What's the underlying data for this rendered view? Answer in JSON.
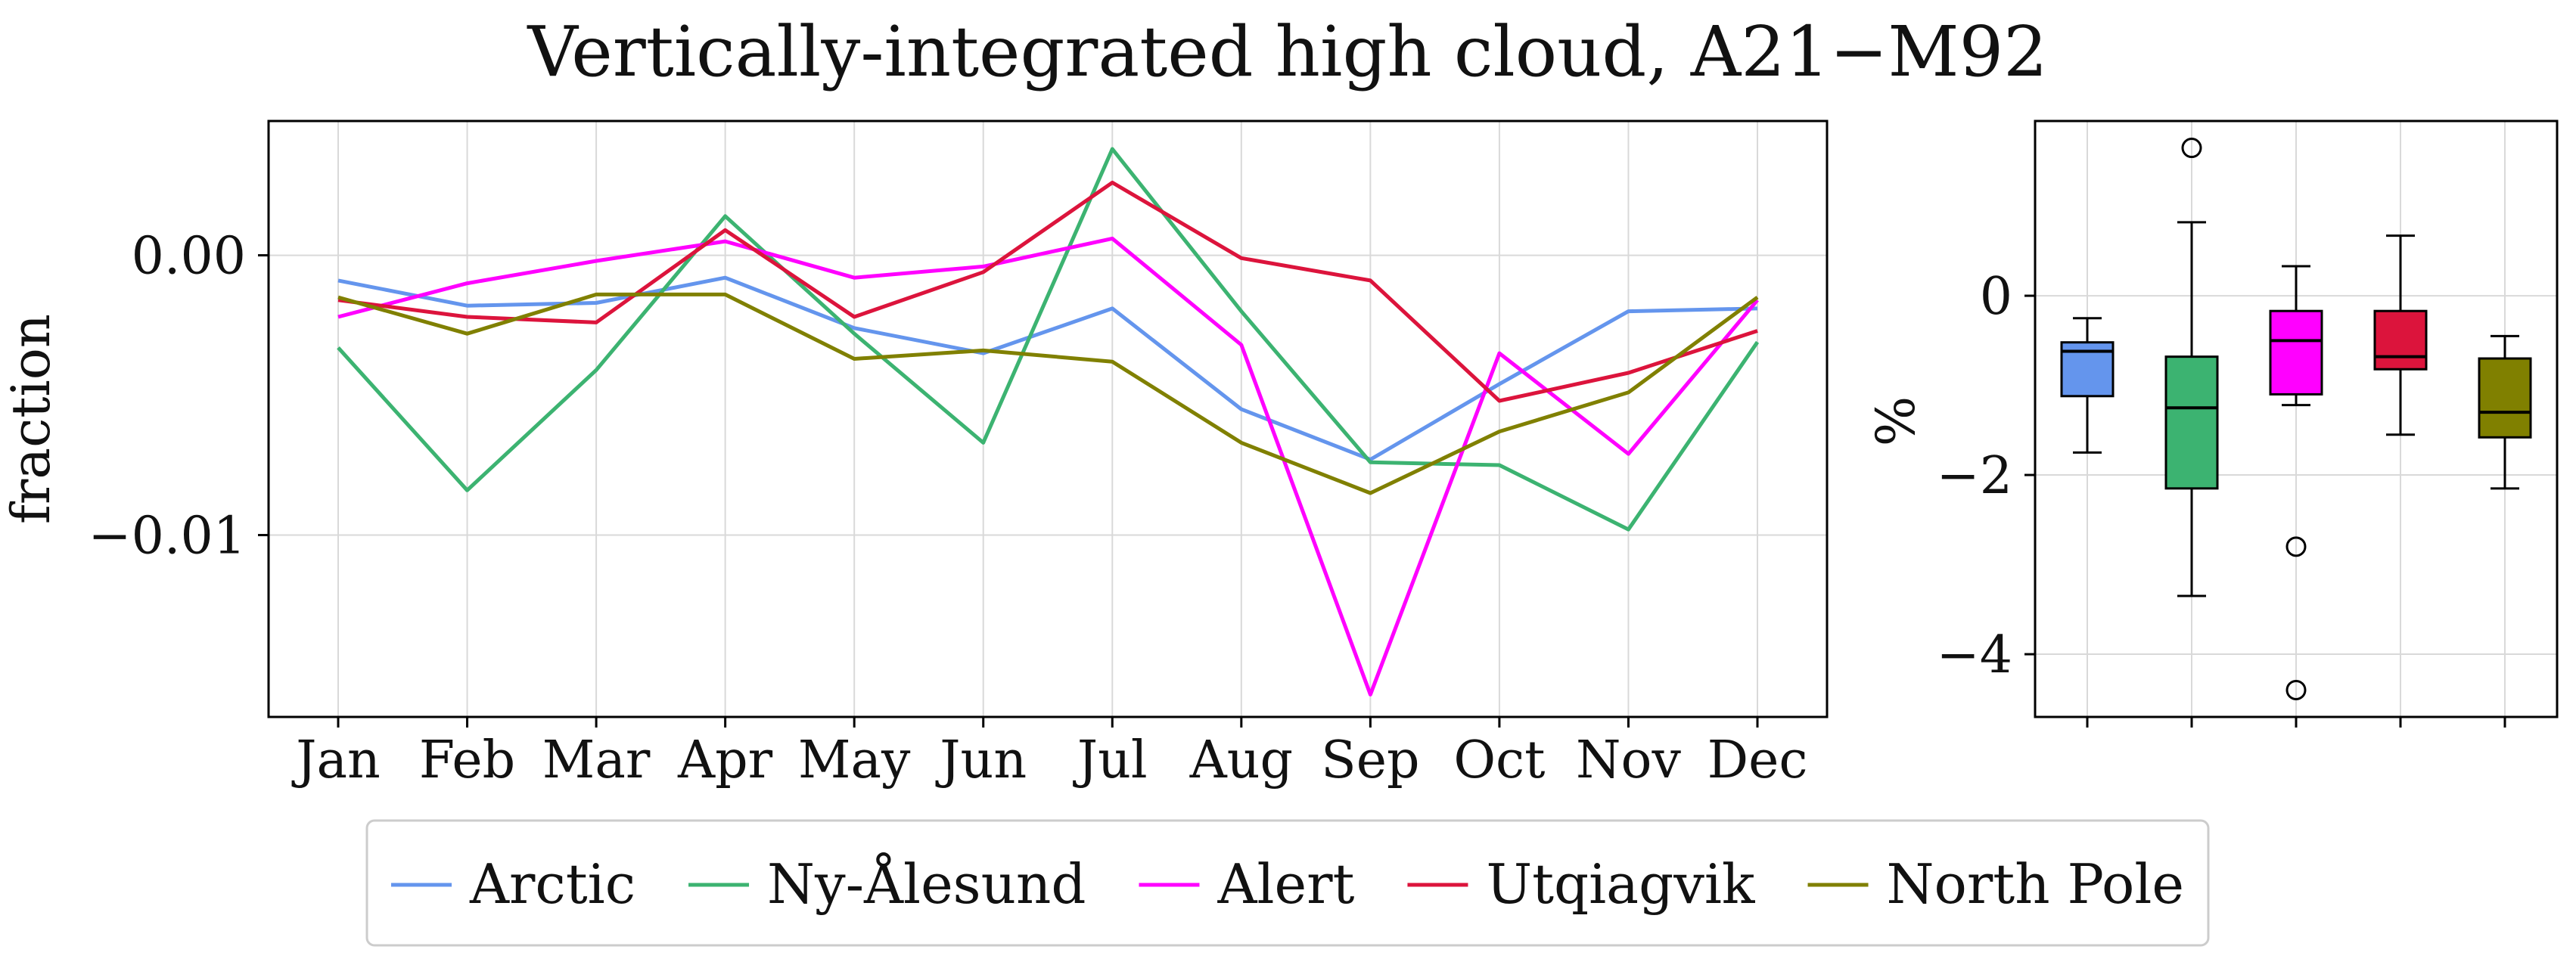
{
  "chart_data": [
    {
      "type": "line",
      "title": "Vertically-integrated high cloud, A21−M92",
      "ylabel": "fraction",
      "xlabel": "",
      "categories": [
        "Jan",
        "Feb",
        "Mar",
        "Apr",
        "May",
        "Jun",
        "Jul",
        "Aug",
        "Sep",
        "Oct",
        "Nov",
        "Dec"
      ],
      "ylim": [
        -0.0165,
        0.0048
      ],
      "yticks": [
        0.0,
        -0.01
      ],
      "ytick_labels": [
        "0.00",
        "−0.01"
      ],
      "grid": true,
      "series": [
        {
          "name": "Arctic",
          "color": "#6495ED",
          "values": [
            -0.0009,
            -0.0018,
            -0.0017,
            -0.0008,
            -0.0026,
            -0.0035,
            -0.0019,
            -0.0055,
            -0.0073,
            -0.0046,
            -0.002,
            -0.0019
          ]
        },
        {
          "name": "Ny-Ålesund",
          "color": "#3CB371",
          "values": [
            -0.0033,
            -0.0084,
            -0.0041,
            0.0014,
            -0.0028,
            -0.0067,
            0.0038,
            -0.002,
            -0.0074,
            -0.0075,
            -0.0098,
            -0.0031
          ]
        },
        {
          "name": "Alert",
          "color": "#FF00FF",
          "values": [
            -0.0022,
            -0.001,
            -0.0002,
            0.0005,
            -0.0008,
            -0.0004,
            0.0006,
            -0.0032,
            -0.0157,
            -0.0035,
            -0.0071,
            -0.0016
          ]
        },
        {
          "name": "Utqiagvik",
          "color": "#DC143C",
          "values": [
            -0.0016,
            -0.0022,
            -0.0024,
            0.0009,
            -0.0022,
            -0.0006,
            0.0026,
            -0.0001,
            -0.0009,
            -0.0052,
            -0.0042,
            -0.0027
          ]
        },
        {
          "name": "North Pole",
          "color": "#808000",
          "values": [
            -0.0015,
            -0.0028,
            -0.0014,
            -0.0014,
            -0.0037,
            -0.0034,
            -0.0038,
            -0.0067,
            -0.0085,
            -0.0063,
            -0.0049,
            -0.0015
          ]
        }
      ],
      "legend": "bottom-center"
    },
    {
      "type": "box",
      "ylabel": "%",
      "ylim": [
        -4.7,
        1.95
      ],
      "yticks": [
        0,
        -2,
        -4
      ],
      "ytick_labels": [
        "0",
        "−2",
        "−4"
      ],
      "grid": true,
      "boxes": [
        {
          "name": "Arctic",
          "color": "#6495ED",
          "whisker_low": -1.75,
          "q1": -1.12,
          "median": -0.62,
          "q3": -0.52,
          "whisker_high": -0.25,
          "outliers": []
        },
        {
          "name": "Ny-Ålesund",
          "color": "#3CB371",
          "whisker_low": -3.35,
          "q1": -2.15,
          "median": -1.25,
          "q3": -0.68,
          "whisker_high": 0.82,
          "outliers": [
            1.65
          ]
        },
        {
          "name": "Alert",
          "color": "#FF00FF",
          "whisker_low": -1.22,
          "q1": -1.1,
          "median": -0.5,
          "q3": -0.17,
          "whisker_high": 0.33,
          "outliers": [
            -2.8,
            -4.4
          ]
        },
        {
          "name": "Utqiagvik",
          "color": "#DC143C",
          "whisker_low": -1.55,
          "q1": -0.82,
          "median": -0.68,
          "q3": -0.17,
          "whisker_high": 0.67,
          "outliers": []
        },
        {
          "name": "North Pole",
          "color": "#808000",
          "whisker_low": -2.15,
          "q1": -1.58,
          "median": -1.3,
          "q3": -0.7,
          "whisker_high": -0.45,
          "outliers": []
        }
      ]
    }
  ]
}
